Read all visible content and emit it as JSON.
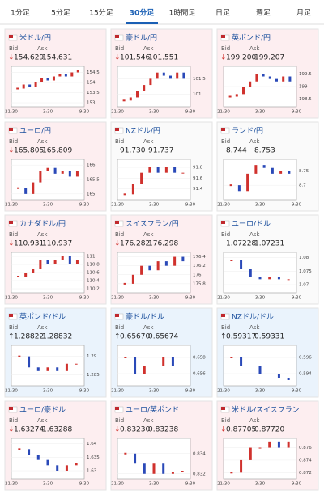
{
  "tabs": {
    "items": [
      "1分足",
      "5分足",
      "15分足",
      "30分足",
      "1時間足",
      "日足",
      "週足",
      "月足"
    ],
    "selected": 3
  },
  "labels": {
    "bid": "Bid",
    "ask": "Ask",
    "times": [
      "21:30",
      "3:30",
      "9:30"
    ]
  },
  "panels": [
    {
      "name": "米ドル/円",
      "bid": "154.629",
      "ask": "154.631",
      "trend": "down",
      "arrow": "↓",
      "ylim": [
        152.8,
        154.8
      ],
      "yticks": [
        153,
        153.5,
        154,
        154.5
      ],
      "values": [
        153.7,
        153.9,
        153.8,
        154.0,
        154.2,
        154.1,
        154.3,
        154.4,
        154.3,
        154.5,
        154.6
      ]
    },
    {
      "name": "豪ドル/円",
      "bid": "101.546",
      "ask": "101.551",
      "trend": "down",
      "arrow": "↓",
      "ylim": [
        100.6,
        101.9
      ],
      "yticks": [
        101,
        101.5
      ],
      "values": [
        100.8,
        100.9,
        101.1,
        101.3,
        101.5,
        101.7,
        101.6,
        101.5,
        101.7,
        101.5
      ]
    },
    {
      "name": "英ポンド/円",
      "bid": "199.200",
      "ask": "199.207",
      "trend": "down",
      "arrow": "↓",
      "ylim": [
        198.2,
        199.8
      ],
      "yticks": [
        198.5,
        199,
        199.5
      ],
      "values": [
        198.6,
        198.7,
        199.0,
        199.2,
        199.5,
        199.4,
        199.3,
        199.2,
        199.4,
        199.2
      ]
    },
    {
      "name": "ユーロ/円",
      "bid": "165.805",
      "ask": "165.809",
      "trend": "down",
      "arrow": "↓",
      "ylim": [
        164.8,
        166.2
      ],
      "yticks": [
        165,
        165.5,
        166
      ],
      "values": [
        165.2,
        165.0,
        165.4,
        165.8,
        165.9,
        165.7,
        165.8,
        165.6,
        165.8
      ]
    },
    {
      "name": "NZドル/円",
      "bid": "91.730",
      "ask": "91.737",
      "trend": "none",
      "arrow": "",
      "ylim": [
        91.2,
        91.95
      ],
      "yticks": [
        91.4,
        91.6,
        91.8
      ],
      "values": [
        91.3,
        91.5,
        91.7,
        91.8,
        91.7,
        91.8,
        91.7,
        91.7
      ]
    },
    {
      "name": "ランド/円",
      "bid": "8.744",
      "ask": "8.753",
      "trend": "none",
      "arrow": "",
      "ylim": [
        8.65,
        8.79
      ],
      "yticks": [
        8.7,
        8.75
      ],
      "values": [
        8.7,
        8.68,
        8.74,
        8.77,
        8.76,
        8.74,
        8.75,
        8.74
      ]
    },
    {
      "name": "カナダドル/円",
      "bid": "110.931",
      "ask": "110.937",
      "trend": "down",
      "arrow": "↓",
      "ylim": [
        110.1,
        111.1
      ],
      "yticks": [
        110.2,
        110.4,
        110.6,
        110.8,
        111
      ],
      "values": [
        110.5,
        110.6,
        110.7,
        110.9,
        110.8,
        110.9,
        111.0,
        110.8,
        110.9
      ]
    },
    {
      "name": "スイスフラン/円",
      "bid": "176.282",
      "ask": "176.298",
      "trend": "down",
      "arrow": "↓",
      "ylim": [
        175.6,
        176.5
      ],
      "yticks": [
        175.8,
        176,
        176.2,
        176.4
      ],
      "values": [
        175.8,
        176.0,
        176.2,
        176.1,
        176.3,
        176.2,
        176.4,
        176.3
      ]
    },
    {
      "name": "ユーロ/ドル",
      "bid": "1.07228",
      "ask": "1.07231",
      "trend": "none",
      "arrow": "",
      "ylim": [
        1.067,
        1.082
      ],
      "yticks": [
        1.07,
        1.075,
        1.08
      ],
      "values": [
        1.079,
        1.076,
        1.073,
        1.072,
        1.073,
        1.072,
        1.072
      ]
    },
    {
      "name": "英ポンド/ドル",
      "bid": "1.28822",
      "ask": "1.28832",
      "trend": "up",
      "arrow": "↑",
      "ylim": [
        1.282,
        1.293
      ],
      "yticks": [
        1.285,
        1.29
      ],
      "values": [
        1.29,
        1.287,
        1.286,
        1.287,
        1.286,
        1.288,
        1.288
      ]
    },
    {
      "name": "豪ドル/ドル",
      "bid": "0.65670",
      "ask": "0.65674",
      "trend": "up",
      "arrow": "↑",
      "ylim": [
        0.6545,
        0.6595
      ],
      "yticks": [
        0.656,
        0.658
      ],
      "values": [
        0.658,
        0.656,
        0.657,
        0.657,
        0.658,
        0.657,
        0.657
      ]
    },
    {
      "name": "NZドル/ドル",
      "bid": "0.59317",
      "ask": "0.59331",
      "trend": "up",
      "arrow": "↑",
      "ylim": [
        0.5925,
        0.5975
      ],
      "yticks": [
        0.594,
        0.596
      ],
      "values": [
        0.596,
        0.595,
        0.595,
        0.594,
        0.594,
        0.5935,
        0.5932
      ]
    },
    {
      "name": "ユーロ/豪ドル",
      "bid": "1.63274",
      "ask": "1.63288",
      "trend": "down",
      "arrow": "↓",
      "ylim": [
        1.627,
        1.642
      ],
      "yticks": [
        1.63,
        1.635,
        1.64
      ],
      "values": [
        1.638,
        1.636,
        1.634,
        1.632,
        1.63,
        1.632,
        1.633
      ]
    },
    {
      "name": "ユーロ/英ポンド",
      "bid": "0.83230",
      "ask": "0.83238",
      "trend": "down",
      "arrow": "↓",
      "ylim": [
        0.8315,
        0.8355
      ],
      "yticks": [
        0.832,
        0.834
      ],
      "values": [
        0.834,
        0.833,
        0.832,
        0.833,
        0.832,
        0.8322,
        0.8323
      ]
    },
    {
      "name": "米ドル/スイスフラン",
      "bid": "0.87705",
      "ask": "0.87720",
      "trend": "down",
      "arrow": "↓",
      "ylim": [
        0.871,
        0.8775
      ],
      "yticks": [
        0.872,
        0.874,
        0.876
      ],
      "values": [
        0.872,
        0.874,
        0.876,
        0.876,
        0.877,
        0.876,
        0.877
      ]
    }
  ]
}
